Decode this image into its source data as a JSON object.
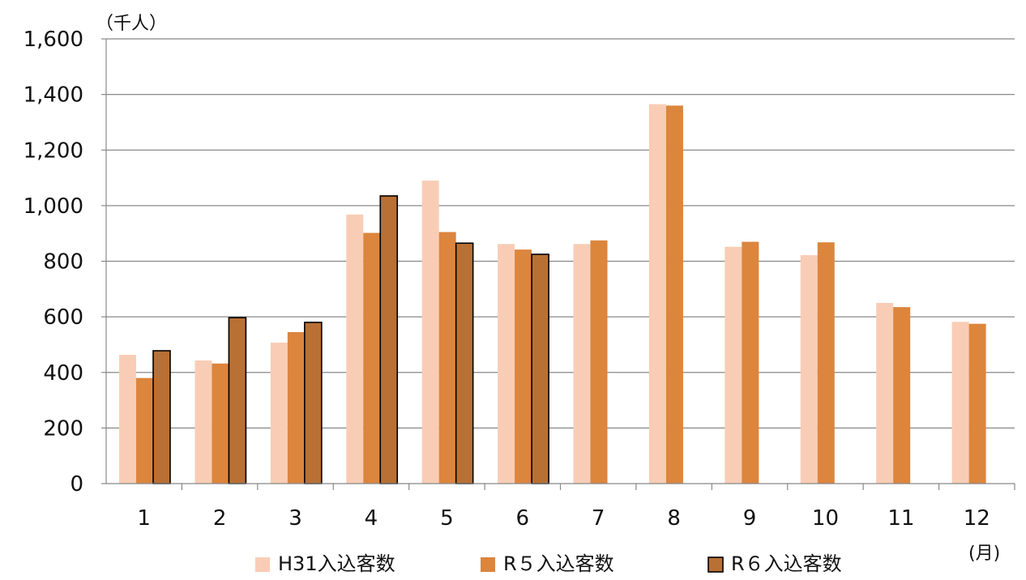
{
  "chart_data": {
    "type": "bar",
    "y_unit_label": "（千人）",
    "x_unit_label": "(月)",
    "categories": [
      "1",
      "2",
      "3",
      "4",
      "5",
      "6",
      "7",
      "8",
      "9",
      "10",
      "11",
      "12"
    ],
    "ylim": [
      0,
      1600
    ],
    "yticks": [
      0,
      200,
      400,
      600,
      800,
      1000,
      1200,
      1400,
      1600
    ],
    "ytick_labels": [
      "0",
      "200",
      "400",
      "600",
      "800",
      "1,000",
      "1,200",
      "1,400",
      "1,600"
    ],
    "grid": true,
    "legend_position": "bottom",
    "series": [
      {
        "name": "H31入込客数",
        "color": "#f9cdb5",
        "outlined": false,
        "values": [
          463,
          443,
          507,
          968,
          1090,
          862,
          862,
          1365,
          852,
          822,
          650,
          582
        ]
      },
      {
        "name": "R５入込客数",
        "color": "#dc853d",
        "outlined": false,
        "values": [
          380,
          432,
          545,
          902,
          905,
          842,
          875,
          1360,
          870,
          868,
          635,
          575
        ]
      },
      {
        "name": "R６入込客数",
        "color": "#b87034",
        "outlined": true,
        "values": [
          478,
          597,
          580,
          1035,
          865,
          825,
          null,
          null,
          null,
          null,
          null,
          null
        ]
      }
    ]
  }
}
